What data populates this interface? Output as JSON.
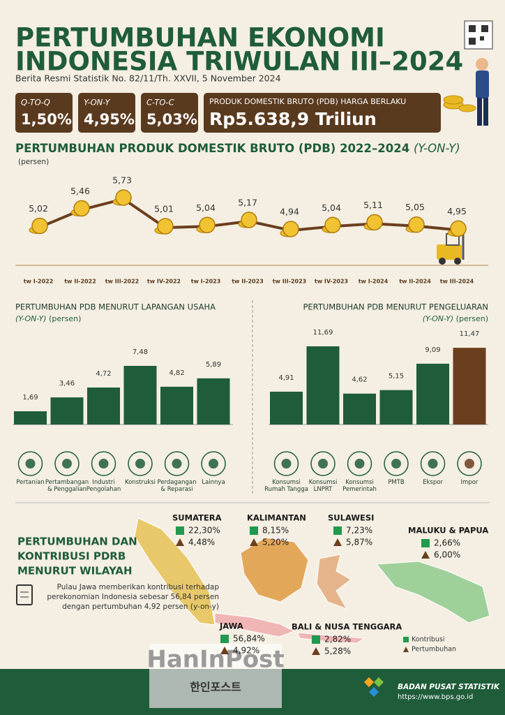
{
  "header": {
    "title_line1": "PERTUMBUHAN EKONOMI",
    "title_line2": "INDONESIA TRIWULAN III–2024",
    "subtitle": "Berita Resmi Statistik No. 82/11/Th. XXVII, 5 November 2024"
  },
  "summary": [
    {
      "label": "Q-TO-Q",
      "value": "1,50%"
    },
    {
      "label": "Y-ON-Y",
      "value": "4,95%"
    },
    {
      "label": "C-TO-C",
      "value": "5,03%"
    }
  ],
  "pdb": {
    "label": "PRODUK DOMESTIK BRUTO (PDB) HARGA BERLAKU",
    "value": "Rp5.638,9 Triliun"
  },
  "chart_data": [
    {
      "type": "line",
      "title": "PERTUMBUHAN PRODUK DOMESTIK BRUTO (PDB) 2022–2024",
      "title_suffix": "(Y-ON-Y)",
      "unit": "(persen)",
      "categories": [
        "tw I-2022",
        "tw II-2022",
        "tw III-2022",
        "tw IV-2022",
        "tw I-2023",
        "tw II-2023",
        "tw III-2023",
        "tw IV-2023",
        "tw I-2024",
        "tw II-2024",
        "tw III-2024"
      ],
      "values": [
        5.02,
        5.46,
        5.73,
        5.01,
        5.04,
        5.17,
        4.94,
        5.04,
        5.11,
        5.05,
        4.95
      ],
      "value_labels": [
        "5,02",
        "5,46",
        "5,73",
        "5,01",
        "5,04",
        "5,17",
        "4,94",
        "5,04",
        "5,11",
        "5,05",
        "4,95"
      ],
      "color": "#6b3e1e"
    },
    {
      "type": "bar",
      "title": "PERTUMBUHAN PDB MENURUT LAPANGAN USAHA",
      "subtitle": "(Y-ON-Y)",
      "unit": "(persen)",
      "categories": [
        "Pertanian",
        "Pertambangan & Penggalian",
        "Industri Pengolahan",
        "Konstruksi",
        "Perdagangan & Reparasi",
        "Lainnya"
      ],
      "values": [
        1.69,
        3.46,
        4.72,
        7.48,
        4.82,
        5.89
      ],
      "value_labels": [
        "1,69",
        "3,46",
        "4,72",
        "7,48",
        "4,82",
        "5,89"
      ],
      "colors": [
        "#1f5c3a",
        "#1f5c3a",
        "#1f5c3a",
        "#1f5c3a",
        "#1f5c3a",
        "#1f5c3a"
      ]
    },
    {
      "type": "bar",
      "title": "PERTUMBUHAN PDB MENURUT PENGELUARAN",
      "subtitle": "(Y-ON-Y)",
      "unit": "(persen)",
      "categories": [
        "Konsumsi Rumah Tangga",
        "Konsumsi LNPRT",
        "Konsumsi Pemerintah",
        "PMTB",
        "Ekspor",
        "Impor"
      ],
      "values": [
        4.91,
        11.69,
        4.62,
        5.15,
        9.09,
        11.47
      ],
      "value_labels": [
        "4,91",
        "11,69",
        "4,62",
        "5,15",
        "9,09",
        "11,47"
      ],
      "colors": [
        "#1f5c3a",
        "#1f5c3a",
        "#1f5c3a",
        "#1f5c3a",
        "#1f5c3a",
        "#6b3e1e"
      ]
    }
  ],
  "regional": {
    "title_line1": "PERTUMBUHAN DAN",
    "title_line2": "KONTRIBUSI PDRB",
    "title_line3": "MENURUT WILAYAH",
    "note": "Pulau Jawa memberikan kontribusi terhadap perekonomian Indonesia sebesar 56,84 persen dengan pertumbuhan 4,92 persen (y-on-y)",
    "regions": [
      {
        "name": "SUMATERA",
        "contribution": "22,30%",
        "growth": "4,48%"
      },
      {
        "name": "KALIMANTAN",
        "contribution": "8,15%",
        "growth": "5,20%"
      },
      {
        "name": "SULAWESI",
        "contribution": "7,23%",
        "growth": "5,87%"
      },
      {
        "name": "MALUKU & PAPUA",
        "contribution": "2,66%",
        "growth": "6,00%"
      },
      {
        "name": "JAWA",
        "contribution": "56,84%",
        "growth": "4,92%"
      },
      {
        "name": "BALI & NUSA TENGGARA",
        "contribution": "2,82%",
        "growth": "5,28%"
      }
    ],
    "legend": {
      "contribution": "Kontribusi",
      "growth": "Pertumbuhan"
    }
  },
  "watermark": {
    "title": "HanInPost",
    "subtitle": "한인포스트"
  },
  "footer": {
    "org": "BADAN PUSAT STATISTIK",
    "url": "https://www.bps.go.id"
  }
}
